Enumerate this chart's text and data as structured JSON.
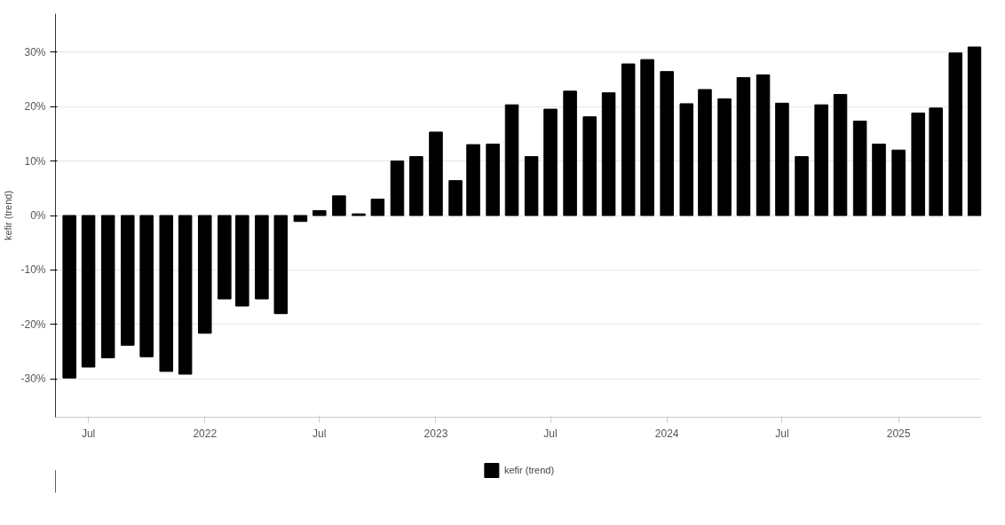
{
  "chart_data": {
    "type": "bar",
    "ylabel": "kefir (trend)",
    "x": [
      "2021-06",
      "2021-07",
      "2021-08",
      "2021-09",
      "2021-10",
      "2021-11",
      "2021-12",
      "2022-01",
      "2022-02",
      "2022-03",
      "2022-04",
      "2022-05",
      "2022-06",
      "2022-07",
      "2022-08",
      "2022-09",
      "2022-10",
      "2022-11",
      "2022-12",
      "2023-01",
      "2023-02",
      "2023-03",
      "2023-04",
      "2023-05",
      "2023-06",
      "2023-07",
      "2023-08",
      "2023-09",
      "2023-10",
      "2023-11",
      "2023-12",
      "2024-01",
      "2024-02",
      "2024-03",
      "2024-04",
      "2024-05",
      "2024-06",
      "2024-07",
      "2024-08",
      "2024-09",
      "2024-10",
      "2024-11",
      "2024-12",
      "2025-01",
      "2025-02",
      "2025-03",
      "2025-04",
      "2025-05"
    ],
    "series": [
      {
        "name": "kefir (trend)",
        "color": "#000000",
        "values": [
          -29.8,
          -27.8,
          -26.1,
          -23.8,
          -25.9,
          -28.6,
          -29.1,
          -21.6,
          -15.3,
          -16.6,
          -15.3,
          -18.0,
          -1.1,
          0.9,
          3.6,
          0.3,
          3.0,
          10.0,
          10.8,
          15.3,
          6.4,
          13.0,
          13.1,
          20.3,
          10.8,
          19.5,
          22.8,
          18.1,
          22.5,
          27.8,
          28.6,
          26.4,
          20.5,
          23.1,
          21.4,
          25.3,
          25.8,
          20.6,
          10.8,
          20.3,
          22.2,
          17.3,
          13.1,
          12.0,
          18.8,
          19.7,
          29.8,
          30.9
        ]
      }
    ],
    "xlim": [
      "2021-05-10",
      "2025-05-12"
    ],
    "xticks": [
      {
        "value": "2021-07",
        "label": "Jul"
      },
      {
        "value": "2022-01",
        "label": "2022"
      },
      {
        "value": "2022-07",
        "label": "Jul"
      },
      {
        "value": "2023-01",
        "label": "2023"
      },
      {
        "value": "2023-07",
        "label": "Jul"
      },
      {
        "value": "2024-01",
        "label": "2024"
      },
      {
        "value": "2024-07",
        "label": "Jul"
      },
      {
        "value": "2025-01",
        "label": "2025"
      }
    ],
    "ylim": [
      -37,
      37
    ],
    "yticks": [
      {
        "value": -30,
        "label": "-30%"
      },
      {
        "value": -20,
        "label": "-20%"
      },
      {
        "value": -10,
        "label": "-10%"
      },
      {
        "value": 0,
        "label": "0%"
      },
      {
        "value": 10,
        "label": "10%"
      },
      {
        "value": 20,
        "label": "20%"
      },
      {
        "value": 30,
        "label": "30%"
      }
    ],
    "grid": "y",
    "legend": "bottom"
  }
}
